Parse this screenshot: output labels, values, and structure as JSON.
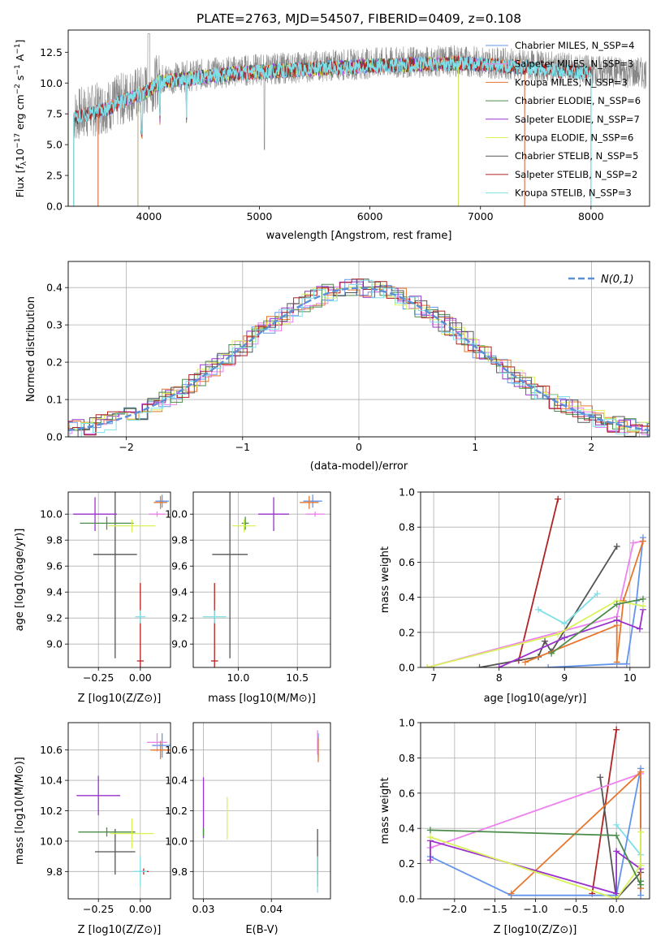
{
  "colors": {
    "chabrier_miles": "#6495ED",
    "salpeter_miles": "#EE82EE",
    "kroupa_miles": "#E8762C",
    "chabrier_elodie": "#4C8C4A",
    "salpeter_elodie": "#9932CC",
    "kroupa_elodie": "#D9F25A",
    "chabrier_stelib": "#555555",
    "salpeter_stelib": "#B22222",
    "kroupa_stelib": "#7FDFE8"
  },
  "chart_data": [
    {
      "id": "spectrum",
      "type": "line",
      "title": "PLATE=2763, MJD=54507, FIBERID=0409, z=0.108",
      "xlabel": "wavelength [Angstrom, rest frame]",
      "ylabel": "Flux [f_λ 10^-17 erg cm^-2 s^-1 A^-1]",
      "xlim": [
        3270,
        8530
      ],
      "ylim": [
        0,
        14.3
      ],
      "xticks": [
        "4000",
        "5000",
        "6000",
        "7000",
        "8000"
      ],
      "yticks": [
        "0.0",
        "2.5",
        "5.0",
        "7.5",
        "10.0",
        "12.5"
      ],
      "legend_position": "right",
      "legend": [
        {
          "name": "Chabrier MILES, N_SSP=4",
          "color_key": "chabrier_miles"
        },
        {
          "name": "Salpeter MILES, N_SSP=3",
          "color_key": "salpeter_miles"
        },
        {
          "name": "Kroupa MILES, N_SSP=3",
          "color_key": "kroupa_miles"
        },
        {
          "name": "Chabrier ELODIE, N_SSP=6",
          "color_key": "chabrier_elodie"
        },
        {
          "name": "Salpeter ELODIE, N_SSP=7",
          "color_key": "salpeter_elodie"
        },
        {
          "name": "Kroupa ELODIE, N_SSP=6",
          "color_key": "kroupa_elodie"
        },
        {
          "name": "Chabrier STELIB, N_SSP=5",
          "color_key": "chabrier_stelib"
        },
        {
          "name": "Salpeter STELIB, N_SSP=2",
          "color_key": "salpeter_stelib"
        },
        {
          "name": "Kroupa STELIB, N_SSP=3",
          "color_key": "kroupa_stelib"
        }
      ],
      "continuum_anchors": {
        "x": [
          3300,
          3500,
          3650,
          3800,
          3950,
          4100,
          4400,
          4800,
          5200,
          5600,
          6000,
          6400,
          6800,
          7200,
          7600,
          8000,
          8500
        ],
        "y": [
          7.3,
          7.8,
          8.2,
          8.9,
          9.3,
          10.3,
          10.6,
          11.0,
          11.2,
          11.4,
          11.6,
          11.7,
          11.8,
          11.6,
          11.3,
          11.0,
          10.8
        ]
      }
    },
    {
      "id": "residuals",
      "type": "step",
      "xlabel": "(data-model)/error",
      "ylabel": "Normed distribution",
      "xlim": [
        -2.5,
        2.5
      ],
      "ylim": [
        0,
        0.47
      ],
      "xticks": [
        "−2",
        "−1",
        "0",
        "1",
        "2"
      ],
      "yticks": [
        "0.0",
        "0.1",
        "0.2",
        "0.3",
        "0.4"
      ],
      "grid": true,
      "legend_position": "top-right",
      "gaussian_label": "N(0,1)"
    },
    {
      "id": "age_vs_Z",
      "type": "errorbar",
      "xlabel": "Z [log10(Z/Z⊙)]",
      "ylabel": "age  [log10(age/yr)]",
      "xlim": [
        -0.43,
        0.18
      ],
      "ylim": [
        8.82,
        10.17
      ],
      "xticks": [
        "−0.25",
        "0.00"
      ],
      "yticks": [
        "9.0",
        "9.2",
        "9.4",
        "9.6",
        "9.8",
        "10.0"
      ],
      "grid": true,
      "points": [
        {
          "c": "chabrier_stelib",
          "x": -0.15,
          "xerr": 0.13,
          "y": 9.69,
          "yerr": 0.8
        },
        {
          "c": "salpeter_stelib",
          "x": 0.0,
          "xerr": 0.02,
          "y": 8.87,
          "yerr": 0.6
        },
        {
          "c": "kroupa_stelib",
          "x": 0.0,
          "xerr": 0.03,
          "y": 9.21,
          "yerr": 0.05
        },
        {
          "c": "salpeter_elodie",
          "x": -0.27,
          "xerr": 0.13,
          "y": 10.0,
          "yerr": 0.13
        },
        {
          "c": "chabrier_elodie",
          "x": -0.2,
          "xerr": 0.16,
          "y": 9.93,
          "yerr": 0.05
        },
        {
          "c": "kroupa_elodie",
          "x": -0.05,
          "xerr": 0.14,
          "y": 9.91,
          "yerr": 0.05
        },
        {
          "c": "chabrier_miles",
          "x": 0.13,
          "xerr": 0.04,
          "y": 10.1,
          "yerr": 0.05
        },
        {
          "c": "salpeter_miles",
          "x": 0.1,
          "xerr": 0.05,
          "y": 10.0,
          "yerr": 0.02
        },
        {
          "c": "kroupa_miles",
          "x": 0.12,
          "xerr": 0.04,
          "y": 10.09,
          "yerr": 0.05
        }
      ]
    },
    {
      "id": "age_vs_mass",
      "type": "errorbar",
      "xlabel": "mass [log10(M/M⊙)]",
      "ylabel": "",
      "xlim": [
        9.62,
        10.78
      ],
      "ylim": [
        8.82,
        10.17
      ],
      "xticks": [
        "10.0",
        "10.5"
      ],
      "yticks": [
        "9.0",
        "9.2",
        "9.4",
        "9.6",
        "9.8",
        "10.0"
      ],
      "grid": true,
      "points": [
        {
          "c": "chabrier_stelib",
          "x": 9.93,
          "xerr": 0.15,
          "y": 9.69,
          "yerr": 0.8
        },
        {
          "c": "salpeter_stelib",
          "x": 9.8,
          "xerr": 0.03,
          "y": 8.87,
          "yerr": 0.6
        },
        {
          "c": "kroupa_stelib",
          "x": 9.8,
          "xerr": 0.1,
          "y": 9.21,
          "yerr": 0.05
        },
        {
          "c": "salpeter_elodie",
          "x": 10.3,
          "xerr": 0.13,
          "y": 10.0,
          "yerr": 0.13
        },
        {
          "c": "chabrier_elodie",
          "x": 10.06,
          "xerr": 0.03,
          "y": 9.93,
          "yerr": 0.05
        },
        {
          "c": "kroupa_elodie",
          "x": 10.05,
          "xerr": 0.1,
          "y": 9.91,
          "yerr": 0.05
        },
        {
          "c": "chabrier_miles",
          "x": 10.63,
          "xerr": 0.08,
          "y": 10.1,
          "yerr": 0.05
        },
        {
          "c": "salpeter_miles",
          "x": 10.65,
          "xerr": 0.08,
          "y": 10.0,
          "yerr": 0.02
        },
        {
          "c": "kroupa_miles",
          "x": 10.6,
          "xerr": 0.08,
          "y": 10.09,
          "yerr": 0.05
        }
      ]
    },
    {
      "id": "mass_weight_vs_age",
      "type": "line",
      "xlabel": "age  [log10(age/yr)]",
      "ylabel": "mass weight",
      "xlim": [
        6.8,
        10.3
      ],
      "ylim": [
        0,
        1
      ],
      "xticks": [
        "7",
        "8",
        "9",
        "10"
      ],
      "yticks": [
        "0.0",
        "0.2",
        "0.4",
        "0.6",
        "0.8",
        "1.0"
      ],
      "grid": true,
      "series": [
        {
          "c": "salpeter_stelib",
          "x": [
            8.3,
            8.9
          ],
          "y": [
            0.04,
            0.96
          ]
        },
        {
          "c": "chabrier_stelib",
          "x": [
            7.7,
            8.6,
            8.7,
            8.8,
            9.8
          ],
          "y": [
            0.0,
            0.06,
            0.15,
            0.09,
            0.69
          ]
        },
        {
          "c": "kroupa_stelib",
          "x": [
            8.6,
            9.0,
            9.5
          ],
          "y": [
            0.33,
            0.25,
            0.42
          ]
        },
        {
          "c": "chabrier_miles",
          "x": [
            8.75,
            9.8,
            9.95,
            10.1,
            10.2
          ],
          "y": [
            0.0,
            0.02,
            0.02,
            0.38,
            0.74
          ]
        },
        {
          "c": "salpeter_miles",
          "x": [
            6.9,
            9.8,
            10.05,
            10.2
          ],
          "y": [
            0.0,
            0.29,
            0.71,
            0.72
          ]
        },
        {
          "c": "kroupa_miles",
          "x": [
            8.4,
            9.8,
            9.8,
            9.9,
            10.2
          ],
          "y": [
            0.03,
            0.24,
            0.03,
            0.38,
            0.72
          ]
        },
        {
          "c": "salpeter_elodie",
          "x": [
            8.0,
            9.0,
            9.8,
            10.15,
            10.2
          ],
          "y": [
            0.0,
            0.17,
            0.27,
            0.22,
            0.33
          ]
        },
        {
          "c": "kroupa_elodie",
          "x": [
            6.9,
            8.9,
            9.8,
            10.2
          ],
          "y": [
            0.0,
            0.19,
            0.38,
            0.35
          ]
        },
        {
          "c": "chabrier_elodie",
          "x": [
            8.8,
            9.8,
            10.2
          ],
          "y": [
            0.08,
            0.36,
            0.39
          ]
        }
      ]
    },
    {
      "id": "mass_vs_Z",
      "type": "errorbar",
      "xlabel": "Z [log10(Z/Z⊙)]",
      "ylabel": "mass [log10(M/M⊙)]",
      "xlim": [
        -0.43,
        0.18
      ],
      "ylim": [
        9.62,
        10.78
      ],
      "xticks": [
        "−0.25",
        "0.00"
      ],
      "yticks": [
        "9.8",
        "10.0",
        "10.2",
        "10.4",
        "10.6"
      ],
      "grid": true,
      "points": [
        {
          "c": "chabrier_stelib",
          "x": -0.15,
          "xerr": 0.12,
          "y": 9.93,
          "yerr": 0.15
        },
        {
          "c": "salpeter_stelib",
          "x": 0.02,
          "xerr": 0.03,
          "y": 9.8,
          "yerr": 0.02
        },
        {
          "c": "kroupa_stelib",
          "x": 0.0,
          "xerr": 0.04,
          "y": 9.8,
          "yerr": 0.1
        },
        {
          "c": "salpeter_elodie",
          "x": -0.25,
          "xerr": 0.13,
          "y": 10.3,
          "yerr": 0.13
        },
        {
          "c": "chabrier_elodie",
          "x": -0.2,
          "xerr": 0.17,
          "y": 10.06,
          "yerr": 0.03
        },
        {
          "c": "kroupa_elodie",
          "x": -0.05,
          "xerr": 0.13,
          "y": 10.05,
          "yerr": 0.1
        },
        {
          "c": "chabrier_miles",
          "x": 0.13,
          "xerr": 0.06,
          "y": 10.63,
          "yerr": 0.08
        },
        {
          "c": "salpeter_miles",
          "x": 0.1,
          "xerr": 0.06,
          "y": 10.65,
          "yerr": 0.06
        },
        {
          "c": "kroupa_miles",
          "x": 0.12,
          "xerr": 0.06,
          "y": 10.6,
          "yerr": 0.06
        }
      ]
    },
    {
      "id": "mass_vs_ebv",
      "type": "errorbar",
      "xlabel": "E(B-V)",
      "ylabel": "",
      "xlim": [
        0.0285,
        0.0487
      ],
      "ylim": [
        9.62,
        10.78
      ],
      "xticks": [
        "0.03",
        "0.04"
      ],
      "yticks": [
        "9.8",
        "10.0",
        "10.2",
        "10.4",
        "10.6"
      ],
      "grid": true,
      "points": [
        {
          "c": "salpeter_elodie",
          "x": 0.03,
          "xerr": 0,
          "y": 10.22,
          "yerr": 0.2
        },
        {
          "c": "chabrier_elodie",
          "x": 0.03,
          "xerr": 0,
          "y": 10.06,
          "yerr": 0.03
        },
        {
          "c": "kroupa_elodie",
          "x": 0.0335,
          "xerr": 0,
          "y": 10.15,
          "yerr": 0.14
        },
        {
          "c": "chabrier_stelib",
          "x": 0.0468,
          "xerr": 0,
          "y": 9.93,
          "yerr": 0.15
        },
        {
          "c": "salpeter_stelib",
          "x": 0.0468,
          "xerr": 0,
          "y": 9.8,
          "yerr": 0.1
        },
        {
          "c": "kroupa_stelib",
          "x": 0.0468,
          "xerr": 0,
          "y": 9.78,
          "yerr": 0.12
        },
        {
          "c": "chabrier_miles",
          "x": 0.0469,
          "xerr": 0,
          "y": 10.63,
          "yerr": 0.08
        },
        {
          "c": "salpeter_miles",
          "x": 0.0468,
          "xerr": 0,
          "y": 10.65,
          "yerr": 0.08
        },
        {
          "c": "kroupa_miles",
          "x": 0.0469,
          "xerr": 0,
          "y": 10.6,
          "yerr": 0.08
        }
      ]
    },
    {
      "id": "mass_weight_vs_Z",
      "type": "line",
      "xlabel": "Z [log10(Z/Z⊙)]",
      "ylabel": "mass weight",
      "xlim": [
        -2.42,
        0.41
      ],
      "ylim": [
        0,
        1
      ],
      "xticks": [
        "−2.0",
        "−1.5",
        "−1.0",
        "−0.5",
        "0.0"
      ],
      "yticks": [
        "0.0",
        "0.2",
        "0.4",
        "0.6",
        "0.8",
        "1.0"
      ],
      "grid": true,
      "series": [
        {
          "c": "salpeter_stelib",
          "x": [
            -0.3,
            0.0
          ],
          "y": [
            0.03,
            0.96
          ]
        },
        {
          "c": "chabrier_stelib",
          "x": [
            -0.2,
            0.0,
            0.3,
            0.3
          ],
          "y": [
            0.69,
            0.0,
            0.15,
            0.06
          ]
        },
        {
          "c": "kroupa_stelib",
          "x": [
            0.0,
            0.3
          ],
          "y": [
            0.42,
            0.25
          ]
        },
        {
          "c": "chabrier_miles",
          "x": [
            -2.3,
            -1.3,
            0.0,
            0.3,
            0.3
          ],
          "y": [
            0.24,
            0.02,
            0.02,
            0.74,
            0.02
          ]
        },
        {
          "c": "salpeter_miles",
          "x": [
            -2.3,
            0.3
          ],
          "y": [
            0.29,
            0.71
          ]
        },
        {
          "c": "kroupa_miles",
          "x": [
            -1.3,
            0.3,
            0.3
          ],
          "y": [
            0.03,
            0.72,
            0.06
          ]
        },
        {
          "c": "salpeter_elodie",
          "x": [
            -2.3,
            -2.3,
            0.0,
            0.0,
            0.3
          ],
          "y": [
            0.22,
            0.33,
            0.03,
            0.27,
            0.17
          ]
        },
        {
          "c": "kroupa_elodie",
          "x": [
            -2.3,
            0.0,
            0.3,
            0.3
          ],
          "y": [
            0.35,
            0.0,
            0.19,
            0.38
          ]
        },
        {
          "c": "chabrier_elodie",
          "x": [
            -2.3,
            0.0,
            0.3,
            0.3
          ],
          "y": [
            0.39,
            0.36,
            0.08,
            0.1
          ]
        }
      ]
    }
  ]
}
